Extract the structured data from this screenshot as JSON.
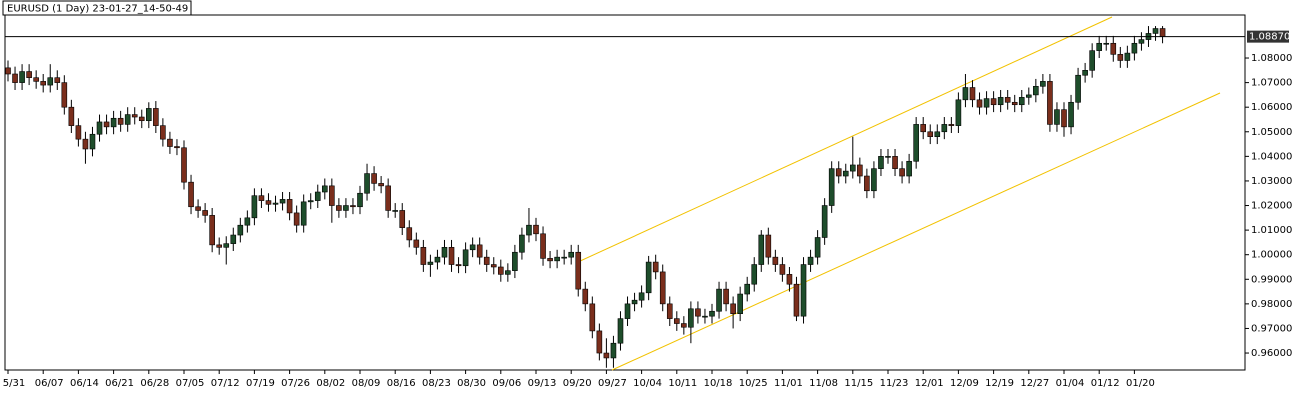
{
  "chart_data": {
    "type": "candlestick",
    "title": "EURUSD (1 Day) 23-01-27_14-50-49",
    "up_color": "#1e4d2b",
    "down_color": "#7a2e1c",
    "wick_color": "#000000",
    "ylim": [
      0.9531,
      1.0975
    ],
    "yticks": [
      {
        "value": 0.96,
        "label": "0.96000"
      },
      {
        "value": 0.97,
        "label": "0.97000"
      },
      {
        "value": 0.98,
        "label": "0.98000"
      },
      {
        "value": 0.99,
        "label": "0.99000"
      },
      {
        "value": 1.0,
        "label": "1.00000"
      },
      {
        "value": 1.01,
        "label": "1.01000"
      },
      {
        "value": 1.02,
        "label": "1.02000"
      },
      {
        "value": 1.03,
        "label": "1.03000"
      },
      {
        "value": 1.04,
        "label": "1.04000"
      },
      {
        "value": 1.05,
        "label": "1.05000"
      },
      {
        "value": 1.06,
        "label": "1.06000"
      },
      {
        "value": 1.07,
        "label": "1.07000"
      },
      {
        "value": 1.08,
        "label": "1.08000"
      }
    ],
    "last_price": {
      "value": 1.0887,
      "label": "1.08870"
    },
    "categories": [
      "5/31",
      null,
      null,
      null,
      null,
      "06/07",
      null,
      null,
      null,
      null,
      "06/14",
      null,
      null,
      null,
      null,
      "06/21",
      null,
      null,
      null,
      null,
      "06/28",
      null,
      null,
      null,
      null,
      "07/05",
      null,
      null,
      null,
      null,
      "07/12",
      null,
      null,
      null,
      null,
      "07/19",
      null,
      null,
      null,
      null,
      "07/26",
      null,
      null,
      null,
      null,
      "08/02",
      null,
      null,
      null,
      null,
      "08/09",
      null,
      null,
      null,
      null,
      "08/16",
      null,
      null,
      null,
      null,
      "08/23",
      null,
      null,
      null,
      null,
      "08/30",
      null,
      null,
      null,
      null,
      "09/06",
      null,
      null,
      null,
      null,
      "09/13",
      null,
      null,
      null,
      null,
      "09/20",
      null,
      null,
      null,
      null,
      "09/27",
      null,
      null,
      null,
      null,
      "10/04",
      null,
      null,
      null,
      null,
      "10/11",
      null,
      null,
      null,
      null,
      "10/18",
      null,
      null,
      null,
      null,
      "10/25",
      null,
      null,
      null,
      null,
      "11/01",
      null,
      null,
      null,
      null,
      "11/08",
      null,
      null,
      null,
      null,
      "11/15",
      null,
      null,
      null,
      null,
      "11/23",
      null,
      null,
      null,
      null,
      "12/01",
      null,
      null,
      null,
      null,
      "12/09",
      null,
      null,
      null,
      null,
      "12/19",
      null,
      null,
      null,
      null,
      "12/27",
      null,
      null,
      null,
      null,
      "01/04",
      null,
      null,
      null,
      null,
      "01/12",
      null,
      null,
      null,
      null,
      "01/20",
      null,
      null,
      null,
      null
    ],
    "ohlc": [
      [
        1.076,
        1.079,
        1.0705,
        1.0735
      ],
      [
        1.0735,
        1.0765,
        1.067,
        1.07
      ],
      [
        1.07,
        1.0775,
        1.067,
        1.0745
      ],
      [
        1.0745,
        1.0775,
        1.069,
        1.072
      ],
      [
        1.072,
        1.075,
        1.0675,
        1.0705
      ],
      [
        1.0705,
        1.0735,
        1.066,
        1.069
      ],
      [
        1.069,
        1.0775,
        1.066,
        1.072
      ],
      [
        1.072,
        1.075,
        1.067,
        1.07
      ],
      [
        1.07,
        1.073,
        1.057,
        1.06
      ],
      [
        1.06,
        1.063,
        1.0495,
        1.0525
      ],
      [
        1.0525,
        1.0555,
        1.044,
        1.047
      ],
      [
        1.047,
        1.05,
        1.037,
        1.043
      ],
      [
        1.043,
        1.052,
        1.04,
        1.049
      ],
      [
        1.049,
        1.057,
        1.046,
        1.054
      ],
      [
        1.054,
        1.057,
        1.049,
        1.052
      ],
      [
        1.052,
        1.0585,
        1.049,
        1.0555
      ],
      [
        1.0555,
        1.0585,
        1.05,
        1.053
      ],
      [
        1.053,
        1.06,
        1.05,
        1.057
      ],
      [
        1.057,
        1.06,
        1.053,
        1.056
      ],
      [
        1.056,
        1.059,
        1.0515,
        1.0545
      ],
      [
        1.0545,
        1.062,
        1.0515,
        1.0595
      ],
      [
        1.0595,
        1.0625,
        1.0495,
        1.0525
      ],
      [
        1.0525,
        1.0555,
        1.044,
        1.047
      ],
      [
        1.047,
        1.05,
        1.041,
        1.044
      ],
      [
        1.044,
        1.047,
        1.0405,
        1.0435
      ],
      [
        1.0435,
        1.0465,
        1.0265,
        1.0295
      ],
      [
        1.0295,
        1.0325,
        1.0165,
        1.0195
      ],
      [
        1.0195,
        1.0225,
        1.015,
        1.018
      ],
      [
        1.018,
        1.021,
        1.013,
        1.016
      ],
      [
        1.016,
        1.019,
        1.001,
        1.004
      ],
      [
        1.004,
        1.007,
        1.0,
        1.003
      ],
      [
        1.003,
        1.0075,
        0.996,
        1.0045
      ],
      [
        1.0045,
        1.011,
        1.0015,
        1.008
      ],
      [
        1.008,
        1.015,
        1.005,
        1.012
      ],
      [
        1.012,
        1.018,
        1.009,
        1.015
      ],
      [
        1.015,
        1.027,
        1.012,
        1.024
      ],
      [
        1.024,
        1.027,
        1.019,
        1.022
      ],
      [
        1.022,
        1.025,
        1.0175,
        1.0205
      ],
      [
        1.0205,
        1.024,
        1.0175,
        1.021
      ],
      [
        1.021,
        1.0255,
        1.018,
        1.0225
      ],
      [
        1.0225,
        1.0255,
        1.014,
        1.017
      ],
      [
        1.017,
        1.02,
        1.009,
        1.012
      ],
      [
        1.012,
        1.0245,
        1.009,
        1.0215
      ],
      [
        1.0215,
        1.025,
        1.0185,
        1.022
      ],
      [
        1.022,
        1.0285,
        1.019,
        1.0255
      ],
      [
        1.0255,
        1.031,
        1.0225,
        1.028
      ],
      [
        1.028,
        1.031,
        1.013,
        1.02
      ],
      [
        1.02,
        1.023,
        1.015,
        1.018
      ],
      [
        1.018,
        1.023,
        1.015,
        1.02
      ],
      [
        1.02,
        1.023,
        1.0165,
        1.0195
      ],
      [
        1.0195,
        1.028,
        1.0165,
        1.025
      ],
      [
        1.025,
        1.037,
        1.022,
        1.033
      ],
      [
        1.033,
        1.036,
        1.026,
        1.029
      ],
      [
        1.029,
        1.032,
        1.025,
        1.028
      ],
      [
        1.028,
        1.031,
        1.015,
        1.018
      ],
      [
        1.018,
        1.021,
        1.015,
        1.018
      ],
      [
        1.018,
        1.021,
        1.008,
        1.011
      ],
      [
        1.011,
        1.014,
        1.003,
        1.006
      ],
      [
        1.006,
        1.009,
        1.0,
        1.003
      ],
      [
        1.003,
        1.006,
        0.993,
        0.996
      ],
      [
        0.996,
        1.0,
        0.991,
        0.997
      ],
      [
        0.997,
        1.002,
        0.994,
        0.999
      ],
      [
        0.999,
        1.006,
        0.996,
        1.003
      ],
      [
        1.003,
        1.006,
        0.993,
        0.996
      ],
      [
        0.996,
        0.999,
        0.9925,
        0.9955
      ],
      [
        0.9955,
        1.005,
        0.9925,
        1.002
      ],
      [
        1.002,
        1.007,
        0.999,
        1.004
      ],
      [
        1.004,
        1.007,
        0.996,
        0.999
      ],
      [
        0.999,
        1.002,
        0.993,
        0.996
      ],
      [
        0.996,
        0.999,
        0.992,
        0.995
      ],
      [
        0.995,
        0.998,
        0.989,
        0.992
      ],
      [
        0.992,
        0.9965,
        0.989,
        0.9935
      ],
      [
        0.9935,
        1.004,
        0.9905,
        1.001
      ],
      [
        1.001,
        1.011,
        0.998,
        1.008
      ],
      [
        1.008,
        1.019,
        1.005,
        1.012
      ],
      [
        1.012,
        1.015,
        1.0055,
        1.0085
      ],
      [
        1.0085,
        1.0115,
        0.9955,
        0.9985
      ],
      [
        0.9985,
        1.0015,
        0.9945,
        0.9975
      ],
      [
        0.9975,
        1.002,
        0.9945,
        0.999
      ],
      [
        0.999,
        1.002,
        0.996,
        0.999
      ],
      [
        0.999,
        1.004,
        0.996,
        1.001
      ],
      [
        1.001,
        1.004,
        0.983,
        0.986
      ],
      [
        0.986,
        0.989,
        0.977,
        0.98
      ],
      [
        0.98,
        0.983,
        0.966,
        0.969
      ],
      [
        0.969,
        0.972,
        0.957,
        0.96
      ],
      [
        0.96,
        0.966,
        0.954,
        0.958
      ],
      [
        0.958,
        0.967,
        0.954,
        0.964
      ],
      [
        0.964,
        0.977,
        0.961,
        0.974
      ],
      [
        0.974,
        0.983,
        0.971,
        0.98
      ],
      [
        0.98,
        0.9845,
        0.977,
        0.9815
      ],
      [
        0.9815,
        0.9875,
        0.9785,
        0.9845
      ],
      [
        0.9845,
        0.9995,
        0.9815,
        0.997
      ],
      [
        0.997,
        1.0,
        0.99,
        0.993
      ],
      [
        0.993,
        0.996,
        0.977,
        0.98
      ],
      [
        0.98,
        0.983,
        0.971,
        0.974
      ],
      [
        0.974,
        0.977,
        0.969,
        0.972
      ],
      [
        0.972,
        0.975,
        0.9675,
        0.9705
      ],
      [
        0.9705,
        0.981,
        0.964,
        0.978
      ],
      [
        0.978,
        0.981,
        0.972,
        0.975
      ],
      [
        0.975,
        0.978,
        0.972,
        0.975
      ],
      [
        0.975,
        0.98,
        0.972,
        0.977
      ],
      [
        0.977,
        0.989,
        0.974,
        0.986
      ],
      [
        0.986,
        0.989,
        0.977,
        0.98
      ],
      [
        0.98,
        0.983,
        0.97,
        0.976
      ],
      [
        0.976,
        0.987,
        0.973,
        0.984
      ],
      [
        0.984,
        0.991,
        0.981,
        0.988
      ],
      [
        0.988,
        0.999,
        0.985,
        0.996
      ],
      [
        0.996,
        1.01,
        0.993,
        1.008
      ],
      [
        1.008,
        1.011,
        0.996,
        0.999
      ],
      [
        0.999,
        1.002,
        0.993,
        0.996
      ],
      [
        0.996,
        0.999,
        0.989,
        0.992
      ],
      [
        0.992,
        0.995,
        0.985,
        0.988
      ],
      [
        0.988,
        0.991,
        0.973,
        0.975
      ],
      [
        0.975,
        0.999,
        0.972,
        0.996
      ],
      [
        0.996,
        1.002,
        0.993,
        0.999
      ],
      [
        0.999,
        1.01,
        0.996,
        1.007
      ],
      [
        1.007,
        1.023,
        1.004,
        1.02
      ],
      [
        1.02,
        1.038,
        1.017,
        1.035
      ],
      [
        1.035,
        1.038,
        1.029,
        1.032
      ],
      [
        1.032,
        1.037,
        1.029,
        1.034
      ],
      [
        1.034,
        1.048,
        1.031,
        1.0365
      ],
      [
        1.0365,
        1.0395,
        1.029,
        1.032
      ],
      [
        1.032,
        1.035,
        1.023,
        1.026
      ],
      [
        1.026,
        1.038,
        1.023,
        1.035
      ],
      [
        1.035,
        1.043,
        1.032,
        1.04
      ],
      [
        1.04,
        1.043,
        1.037,
        1.04
      ],
      [
        1.04,
        1.043,
        1.032,
        1.035
      ],
      [
        1.035,
        1.038,
        1.029,
        1.032
      ],
      [
        1.032,
        1.041,
        1.029,
        1.038
      ],
      [
        1.038,
        1.056,
        1.035,
        1.053
      ],
      [
        1.053,
        1.056,
        1.047,
        1.05
      ],
      [
        1.05,
        1.053,
        1.045,
        1.048
      ],
      [
        1.048,
        1.053,
        1.045,
        1.05
      ],
      [
        1.05,
        1.056,
        1.047,
        1.053
      ],
      [
        1.053,
        1.056,
        1.0495,
        1.0525
      ],
      [
        1.0525,
        1.066,
        1.0495,
        1.063
      ],
      [
        1.063,
        1.0735,
        1.06,
        1.068
      ],
      [
        1.068,
        1.071,
        1.06,
        1.063
      ],
      [
        1.063,
        1.066,
        1.057,
        1.06
      ],
      [
        1.06,
        1.0665,
        1.057,
        1.0635
      ],
      [
        1.0635,
        1.0665,
        1.058,
        1.061
      ],
      [
        1.061,
        1.067,
        1.058,
        1.064
      ],
      [
        1.064,
        1.067,
        1.059,
        1.062
      ],
      [
        1.062,
        1.065,
        1.058,
        1.061
      ],
      [
        1.061,
        1.067,
        1.058,
        1.064
      ],
      [
        1.064,
        1.068,
        1.061,
        1.065
      ],
      [
        1.065,
        1.0715,
        1.062,
        1.0685
      ],
      [
        1.0685,
        1.0735,
        1.0655,
        1.0705
      ],
      [
        1.0705,
        1.0735,
        1.05,
        1.053
      ],
      [
        1.053,
        1.062,
        1.05,
        1.059
      ],
      [
        1.059,
        1.062,
        1.048,
        1.052
      ],
      [
        1.052,
        1.065,
        1.049,
        1.062
      ],
      [
        1.062,
        1.076,
        1.059,
        1.073
      ],
      [
        1.073,
        1.078,
        1.07,
        1.075
      ],
      [
        1.075,
        1.086,
        1.072,
        1.083
      ],
      [
        1.083,
        1.089,
        1.08,
        1.086
      ],
      [
        1.086,
        1.089,
        1.083,
        1.086
      ],
      [
        1.086,
        1.089,
        1.0785,
        1.0815
      ],
      [
        1.0815,
        1.0845,
        1.076,
        1.079
      ],
      [
        1.079,
        1.085,
        1.076,
        1.082
      ],
      [
        1.082,
        1.089,
        1.079,
        1.086
      ],
      [
        1.086,
        1.0905,
        1.083,
        1.0875
      ],
      [
        1.0875,
        1.093,
        1.0845,
        1.09
      ],
      [
        1.09,
        1.093,
        1.087,
        1.092
      ],
      [
        1.092,
        1.093,
        1.086,
        1.0887
      ]
    ]
  }
}
